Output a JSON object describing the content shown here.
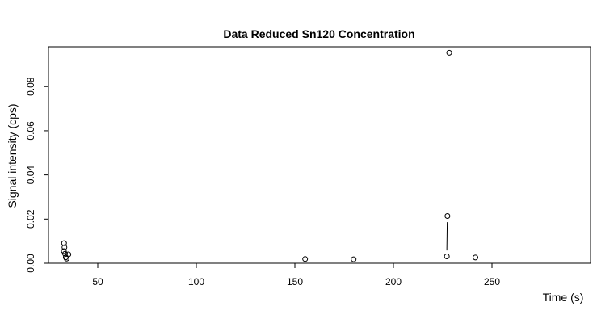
{
  "chart_data": {
    "type": "scatter",
    "title": "Data Reduced Sn120 Concentration",
    "xlabel": "Time (s)",
    "ylabel": "Signal intensity (cps)",
    "xlim": [
      25,
      300
    ],
    "ylim": [
      0,
      0.098
    ],
    "xticks": [
      50,
      100,
      150,
      200,
      250
    ],
    "xtick_labels": [
      "50",
      "100",
      "150",
      "200",
      "250"
    ],
    "yticks": [
      0.0,
      0.02,
      0.04,
      0.06,
      0.08
    ],
    "ytick_labels": [
      "0.00",
      "0.02",
      "0.04",
      "0.06",
      "0.08"
    ],
    "grid": false,
    "points": [
      {
        "x": 32.9,
        "y": 0.0091
      },
      {
        "x": 33.1,
        "y": 0.0072
      },
      {
        "x": 32.8,
        "y": 0.0055
      },
      {
        "x": 33.4,
        "y": 0.0043
      },
      {
        "x": 33.8,
        "y": 0.0027
      },
      {
        "x": 34.2,
        "y": 0.0021
      },
      {
        "x": 35.1,
        "y": 0.004
      },
      {
        "x": 155.2,
        "y": 0.0019
      },
      {
        "x": 179.8,
        "y": 0.0018
      },
      {
        "x": 227.4,
        "y": 0.0214
      },
      {
        "x": 227.1,
        "y": 0.0031
      },
      {
        "x": 228.3,
        "y": 0.0953
      },
      {
        "x": 241.6,
        "y": 0.0026
      }
    ],
    "segments": [
      {
        "x1": 227.3,
        "y1": 0.0186,
        "x2": 227.1,
        "y2": 0.0058
      }
    ]
  }
}
